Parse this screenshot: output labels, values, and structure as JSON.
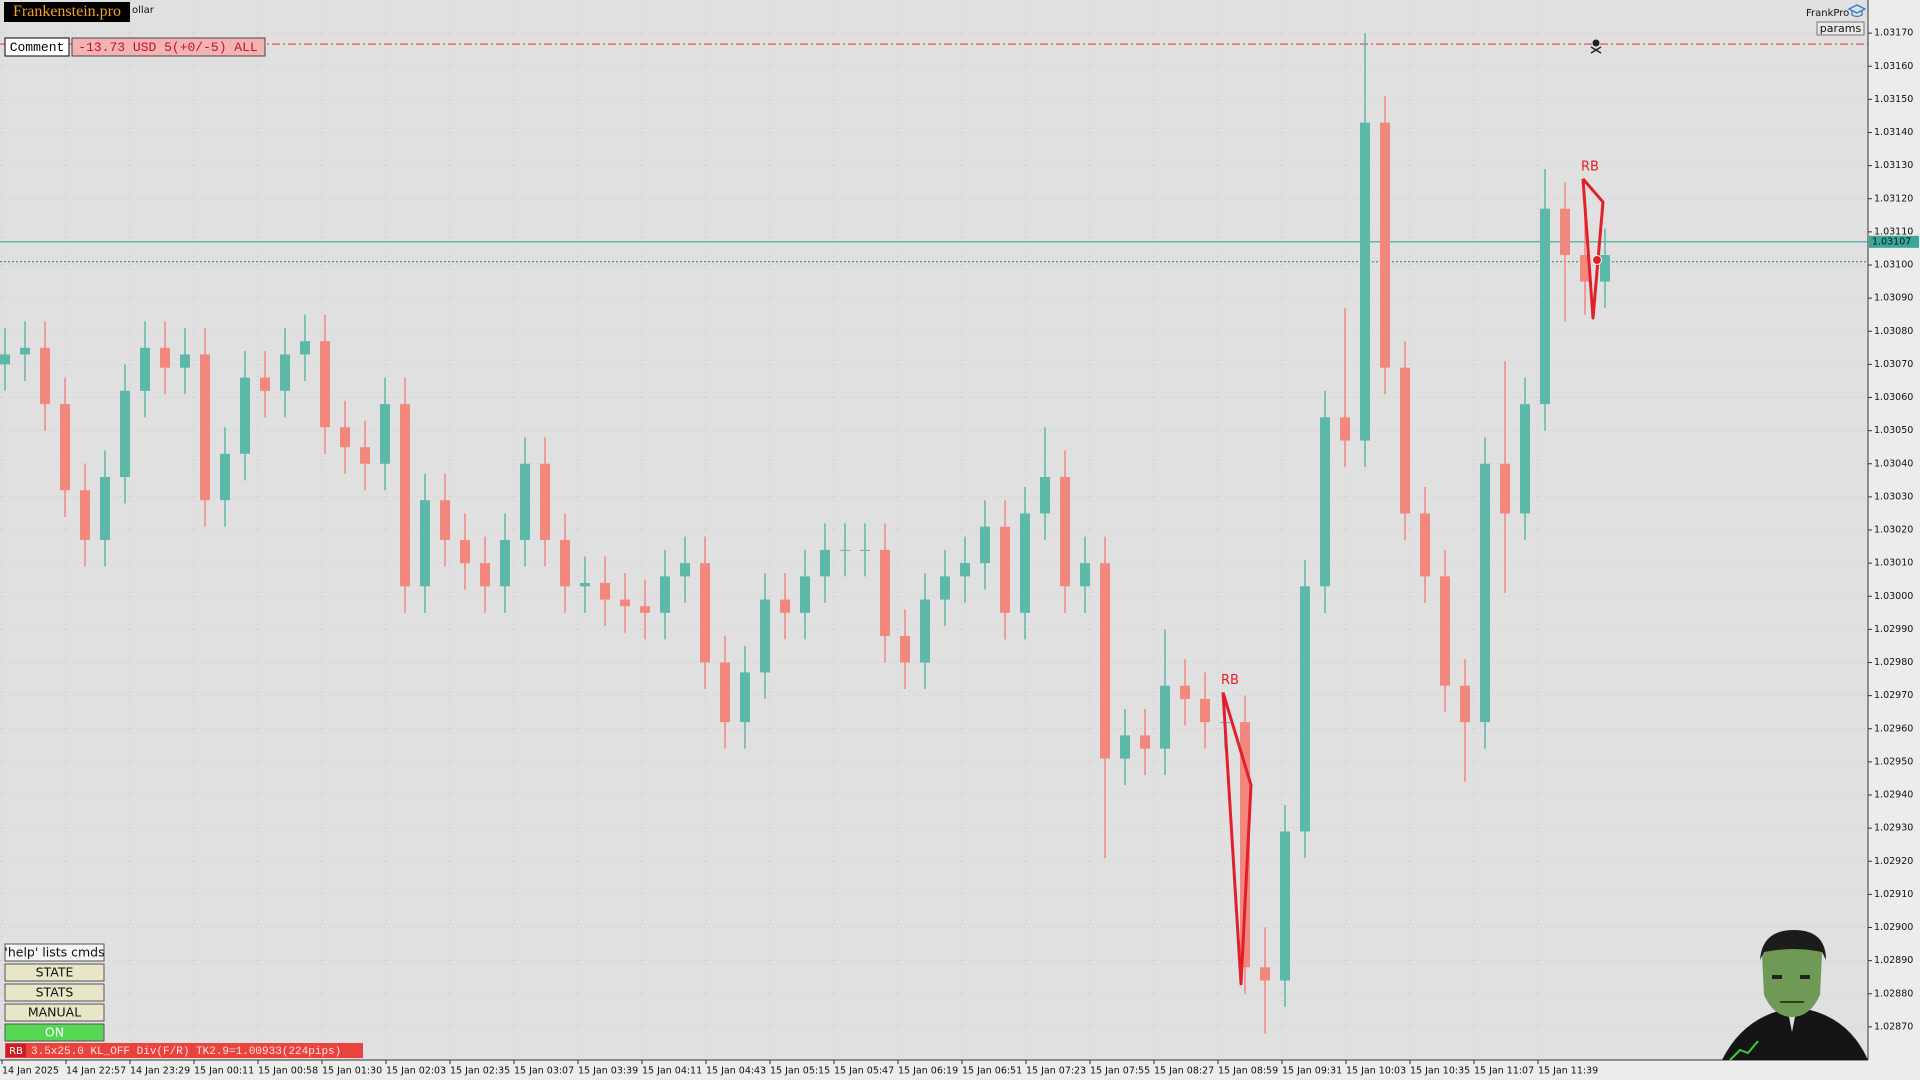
{
  "ui": {
    "logo": "Frankenstein.pro",
    "symbol_fragment": "ollar",
    "comment_label": "Comment",
    "comment_value": "-13.73 USD 5(+0/-5) ALL",
    "brand": "FrankPro",
    "params_button": "params",
    "buttons": [
      "'help' lists cmds",
      "STATE",
      "STATS",
      "MANUAL",
      "ON"
    ],
    "status_tag": "RB",
    "status_text": "3.5x25.0 KL_OFF Div(F/R) TK2.9=1.00933(224pips)"
  },
  "chart_data": {
    "type": "candlestick",
    "open": [
      1.0307,
      1.03073,
      1.03075,
      1.03058,
      1.03032,
      1.03017,
      1.03036,
      1.03062,
      1.03075,
      1.03069,
      1.03073,
      1.03029,
      1.03043,
      1.03066,
      1.03062,
      1.03073,
      1.03077,
      1.03051,
      1.03045,
      1.0304,
      1.03058,
      1.03003,
      1.03029,
      1.03017,
      1.0301,
      1.03003,
      1.03017,
      1.0304,
      1.03017,
      1.03003,
      1.03004,
      1.02999,
      1.02997,
      1.02995,
      1.03006,
      1.0301,
      1.0298,
      1.02962,
      1.02977,
      1.02999,
      1.02995,
      1.03006,
      1.03014,
      1.03014,
      1.03014,
      1.02988,
      1.0298,
      1.02999,
      1.03006,
      1.0301,
      1.03021,
      1.02995,
      1.03025,
      1.03036,
      1.03003,
      1.0301,
      1.02951,
      1.02958,
      1.02954,
      1.02973,
      1.02969,
      1.02962,
      1.02962,
      1.02888,
      1.02884,
      1.02929,
      1.03003,
      1.03054,
      1.03047,
      1.03143,
      1.03069,
      1.03025,
      1.03006,
      1.02973,
      1.02962,
      1.0304,
      1.03025,
      1.03058,
      1.03117,
      1.03103,
      1.03095
    ],
    "high": [
      1.03081,
      1.03083,
      1.03083,
      1.03066,
      1.0304,
      1.03044,
      1.0307,
      1.03083,
      1.03083,
      1.03081,
      1.03081,
      1.03051,
      1.03074,
      1.03074,
      1.03081,
      1.03085,
      1.03085,
      1.03059,
      1.03053,
      1.03066,
      1.03066,
      1.03037,
      1.03037,
      1.03025,
      1.03018,
      1.03025,
      1.03048,
      1.03048,
      1.03025,
      1.03012,
      1.03012,
      1.03007,
      1.03005,
      1.03014,
      1.03018,
      1.03018,
      1.02988,
      1.02985,
      1.03007,
      1.03007,
      1.03014,
      1.03022,
      1.03022,
      1.03022,
      1.03022,
      1.02996,
      1.03007,
      1.03014,
      1.03018,
      1.03029,
      1.03029,
      1.03033,
      1.03051,
      1.03044,
      1.03018,
      1.03018,
      1.02966,
      1.02966,
      1.0299,
      1.02981,
      1.02977,
      1.0297,
      1.0297,
      1.029,
      1.02937,
      1.03011,
      1.03062,
      1.03087,
      1.0317,
      1.03151,
      1.03077,
      1.03033,
      1.03014,
      1.02981,
      1.03048,
      1.03071,
      1.03066,
      1.03129,
      1.03125,
      1.0312,
      1.03111
    ],
    "low": [
      1.03062,
      1.03065,
      1.0305,
      1.03024,
      1.03009,
      1.03009,
      1.03028,
      1.03054,
      1.03061,
      1.03061,
      1.03021,
      1.03021,
      1.03035,
      1.03054,
      1.03054,
      1.03065,
      1.03043,
      1.03037,
      1.03032,
      1.03032,
      1.02995,
      1.02995,
      1.03009,
      1.03002,
      1.02995,
      1.02995,
      1.03009,
      1.03009,
      1.02995,
      1.02995,
      1.02991,
      1.02989,
      1.02987,
      1.02987,
      1.02998,
      1.02972,
      1.02954,
      1.02954,
      1.02969,
      1.02987,
      1.02987,
      1.02998,
      1.03006,
      1.03006,
      1.0298,
      1.02972,
      1.02972,
      1.02991,
      1.02998,
      1.03002,
      1.02987,
      1.02987,
      1.03017,
      1.02995,
      1.02995,
      1.02921,
      1.02943,
      1.02946,
      1.02946,
      1.02961,
      1.02954,
      1.02954,
      1.0288,
      1.02868,
      1.02876,
      1.02921,
      1.02995,
      1.03039,
      1.03039,
      1.03061,
      1.03017,
      1.02998,
      1.02965,
      1.02944,
      1.02954,
      1.03001,
      1.03017,
      1.0305,
      1.03083,
      1.03085,
      1.03087
    ],
    "close": [
      1.03073,
      1.03075,
      1.03058,
      1.03032,
      1.03017,
      1.03036,
      1.03062,
      1.03075,
      1.03069,
      1.03073,
      1.03029,
      1.03043,
      1.03066,
      1.03062,
      1.03073,
      1.03077,
      1.03051,
      1.03045,
      1.0304,
      1.03058,
      1.03003,
      1.03029,
      1.03017,
      1.0301,
      1.03003,
      1.03017,
      1.0304,
      1.03017,
      1.03003,
      1.03004,
      1.02999,
      1.02997,
      1.02995,
      1.03006,
      1.0301,
      1.0298,
      1.02962,
      1.02977,
      1.02999,
      1.02995,
      1.03006,
      1.03014,
      1.03014,
      1.03014,
      1.02988,
      1.0298,
      1.02999,
      1.03006,
      1.0301,
      1.03021,
      1.02995,
      1.03025,
      1.03036,
      1.03003,
      1.0301,
      1.02951,
      1.02958,
      1.02954,
      1.02973,
      1.02969,
      1.02962,
      1.02962,
      1.02888,
      1.02884,
      1.02929,
      1.03003,
      1.03054,
      1.03047,
      1.03143,
      1.03069,
      1.03025,
      1.03006,
      1.02973,
      1.02962,
      1.0304,
      1.03025,
      1.03058,
      1.03117,
      1.03103,
      1.03095,
      1.03103
    ],
    "up_color": "#5cb8a9",
    "down_color": "#f2877e",
    "ylim": [
      1.0286,
      1.0318
    ],
    "yticks": [
      {
        "value": 1.0287,
        "label": "1.02870"
      },
      {
        "value": 1.0288,
        "label": "1.02880"
      },
      {
        "value": 1.0289,
        "label": "1.02890"
      },
      {
        "value": 1.029,
        "label": "1.02900"
      },
      {
        "value": 1.0291,
        "label": "1.02910"
      },
      {
        "value": 1.0292,
        "label": "1.02920"
      },
      {
        "value": 1.0293,
        "label": "1.02930"
      },
      {
        "value": 1.0294,
        "label": "1.02940"
      },
      {
        "value": 1.0295,
        "label": "1.02950"
      },
      {
        "value": 1.0296,
        "label": "1.02960"
      },
      {
        "value": 1.0297,
        "label": "1.02970"
      },
      {
        "value": 1.0298,
        "label": "1.02980"
      },
      {
        "value": 1.0299,
        "label": "1.02990"
      },
      {
        "value": 1.03,
        "label": "1.03000"
      },
      {
        "value": 1.0301,
        "label": "1.03010"
      },
      {
        "value": 1.0302,
        "label": "1.03020"
      },
      {
        "value": 1.0303,
        "label": "1.03030"
      },
      {
        "value": 1.0304,
        "label": "1.03040"
      },
      {
        "value": 1.0305,
        "label": "1.03050"
      },
      {
        "value": 1.0306,
        "label": "1.03060"
      },
      {
        "value": 1.0307,
        "label": "1.03070"
      },
      {
        "value": 1.0308,
        "label": "1.03080"
      },
      {
        "value": 1.0309,
        "label": "1.03090"
      },
      {
        "value": 1.031,
        "label": "1.03100"
      },
      {
        "value": 1.0311,
        "label": "1.03110"
      },
      {
        "value": 1.0312,
        "label": "1.03120"
      },
      {
        "value": 1.0313,
        "label": "1.03130"
      },
      {
        "value": 1.0314,
        "label": "1.03140"
      },
      {
        "value": 1.0315,
        "label": "1.03150"
      },
      {
        "value": 1.0316,
        "label": "1.03160"
      },
      {
        "value": 1.0317,
        "label": "1.03170"
      }
    ],
    "time_labels": [
      "14 Jan 2025",
      "14 Jan 22:57",
      "14 Jan 23:29",
      "15 Jan 00:11",
      "15 Jan 00:58",
      "15 Jan 01:30",
      "15 Jan 02:03",
      "15 Jan 02:35",
      "15 Jan 03:07",
      "15 Jan 03:39",
      "15 Jan 04:11",
      "15 Jan 04:43",
      "15 Jan 05:15",
      "15 Jan 05:47",
      "15 Jan 06:19",
      "15 Jan 06:51",
      "15 Jan 07:23",
      "15 Jan 07:55",
      "15 Jan 08:27",
      "15 Jan 08:59",
      "15 Jan 09:31",
      "15 Jan 10:03",
      "15 Jan 10:35",
      "15 Jan 11:07",
      "15 Jan 11:39"
    ],
    "grid": true,
    "levels": [
      {
        "value": 1.031667,
        "color": "#e8433c",
        "style": "dashdot",
        "axis_tag": false
      },
      {
        "value": 1.03107,
        "color": "#3aa79a",
        "style": "solid",
        "axis_tag": true
      },
      {
        "value": 1.03101,
        "color": "#3a9a3a",
        "style": "dotted",
        "axis_tag": false
      }
    ],
    "patterns": [
      {
        "label": "RB",
        "color": "#e3202a",
        "x": [
          60.9,
          62.3,
          61.8,
          60.9
        ],
        "y": [
          1.02971,
          1.02943,
          1.02883,
          1.02971
        ]
      },
      {
        "label": "RB",
        "color": "#e3202a",
        "x": [
          78.9,
          79.9,
          79.4,
          78.9
        ],
        "y": [
          1.03126,
          1.03119,
          1.03084,
          1.03126
        ]
      }
    ]
  }
}
